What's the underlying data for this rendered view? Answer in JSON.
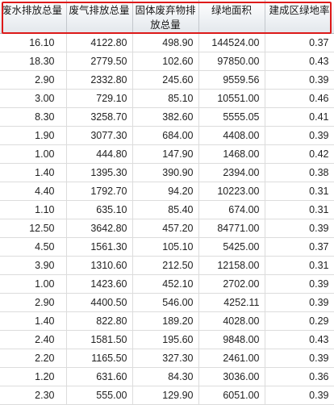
{
  "table": {
    "headers": [
      "废水排放总量",
      "废气排放总量",
      "固体废弃物排放总量",
      "绿地面积",
      "建成区绿地率"
    ],
    "rows": [
      [
        "16.10",
        "4122.80",
        "498.90",
        "144524.00",
        "0.37"
      ],
      [
        "18.30",
        "2779.50",
        "102.60",
        "97850.00",
        "0.43"
      ],
      [
        "2.90",
        "2332.80",
        "245.60",
        "9559.56",
        "0.39"
      ],
      [
        "3.00",
        "729.10",
        "85.10",
        "10551.00",
        "0.46"
      ],
      [
        "8.30",
        "3258.70",
        "382.60",
        "5555.05",
        "0.41"
      ],
      [
        "1.90",
        "3077.30",
        "684.00",
        "4408.00",
        "0.39"
      ],
      [
        "1.00",
        "444.80",
        "147.90",
        "1468.00",
        "0.42"
      ],
      [
        "1.40",
        "1395.30",
        "390.90",
        "2394.00",
        "0.38"
      ],
      [
        "4.40",
        "1792.70",
        "94.20",
        "10223.00",
        "0.31"
      ],
      [
        "1.10",
        "635.10",
        "85.40",
        "674.00",
        "0.31"
      ],
      [
        "12.50",
        "3642.80",
        "457.20",
        "84771.00",
        "0.39"
      ],
      [
        "4.50",
        "1561.30",
        "105.10",
        "5425.00",
        "0.37"
      ],
      [
        "3.90",
        "1310.60",
        "212.50",
        "12158.00",
        "0.31"
      ],
      [
        "1.00",
        "1423.60",
        "452.10",
        "2702.00",
        "0.39"
      ],
      [
        "2.90",
        "4400.50",
        "546.00",
        "4252.11",
        "0.39"
      ],
      [
        "1.40",
        "822.80",
        "189.20",
        "4028.00",
        "0.29"
      ],
      [
        "2.40",
        "1581.50",
        "195.60",
        "9848.00",
        "0.43"
      ],
      [
        "2.20",
        "1165.50",
        "327.30",
        "2461.00",
        "0.39"
      ],
      [
        "1.20",
        "631.60",
        "84.30",
        "3036.00",
        "0.36"
      ],
      [
        "2.30",
        "555.00",
        "129.90",
        "6051.00",
        "0.39"
      ]
    ]
  },
  "colors": {
    "highlight_border": "#dd1a1a",
    "header_background": "#eef1f4",
    "grid_line": "#dcdcdc"
  }
}
